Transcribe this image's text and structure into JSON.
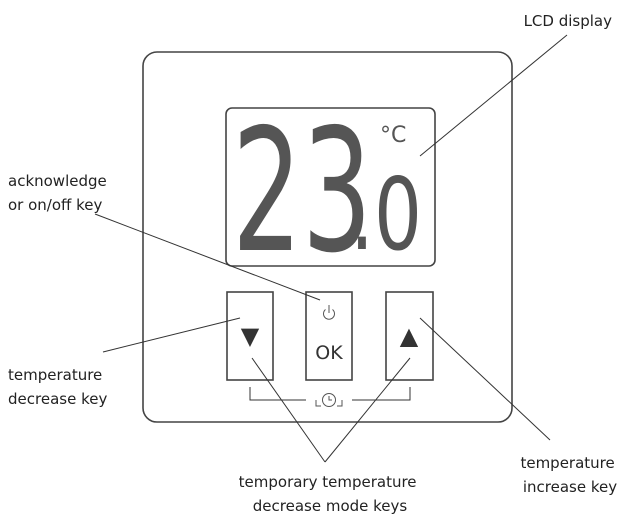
{
  "labels": {
    "lcd": [
      "LCD display"
    ],
    "ok_key": [
      "acknowledge",
      "or on/off key"
    ],
    "decrease_key": [
      "temperature",
      "decrease key"
    ],
    "increase_key": [
      "temperature",
      "increase key"
    ],
    "mode_keys": [
      "temporary temperature",
      "decrease mode keys"
    ]
  },
  "display": {
    "digits": "23",
    "decimal": ".0",
    "unit": "°C"
  },
  "buttons": {
    "ok": "OK",
    "down": "▼",
    "up": "▲"
  }
}
